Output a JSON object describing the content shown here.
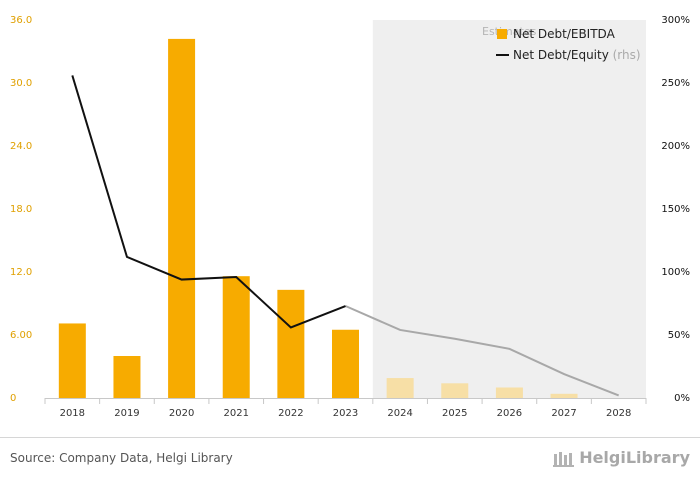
{
  "colors": {
    "bar": "#f7ab00",
    "bar_estimate": "#f7dfa6",
    "line": "#111111",
    "line_estimate": "#a8a8a8",
    "estimate_bg": "#efefef",
    "left_tick": "#e0a000",
    "right_tick": "#111111"
  },
  "legend": {
    "bar_label": "Net Debt/EBITDA",
    "line_label": "Net Debt/Equity",
    "line_suffix": " (rhs)"
  },
  "estimates_label": "Estimates",
  "source": "Source: Company Data, Helgi Library",
  "brand": "HelgiLibrary",
  "chart_data": {
    "type": "bar+line",
    "categories": [
      "2018",
      "2019",
      "2020",
      "2021",
      "2022",
      "2023",
      "2024",
      "2025",
      "2026",
      "2027",
      "2028"
    ],
    "estimate_start": "2024",
    "left_axis": {
      "ylim": [
        0,
        36
      ],
      "ticks": [
        "0",
        "6.00",
        "12.0",
        "18.0",
        "24.0",
        "30.0",
        "36.0"
      ],
      "tick_values": [
        0,
        6,
        12,
        18,
        24,
        30,
        36
      ]
    },
    "right_axis": {
      "ylim": [
        0,
        300
      ],
      "ticks": [
        "0%",
        "50%",
        "100%",
        "150%",
        "200%",
        "250%",
        "300%"
      ],
      "tick_values": [
        0,
        50,
        100,
        150,
        200,
        250,
        300
      ]
    },
    "series": [
      {
        "name": "Net Debt/EBITDA",
        "type": "bar",
        "axis": "left",
        "values": [
          7.1,
          4.0,
          34.2,
          11.6,
          10.3,
          6.5,
          1.9,
          1.4,
          1.0,
          0.4,
          0.0
        ]
      },
      {
        "name": "Net Debt/Equity",
        "type": "line",
        "axis": "right",
        "values": [
          256,
          112,
          94,
          96,
          56,
          73,
          54,
          47,
          39,
          19,
          2
        ]
      }
    ]
  }
}
